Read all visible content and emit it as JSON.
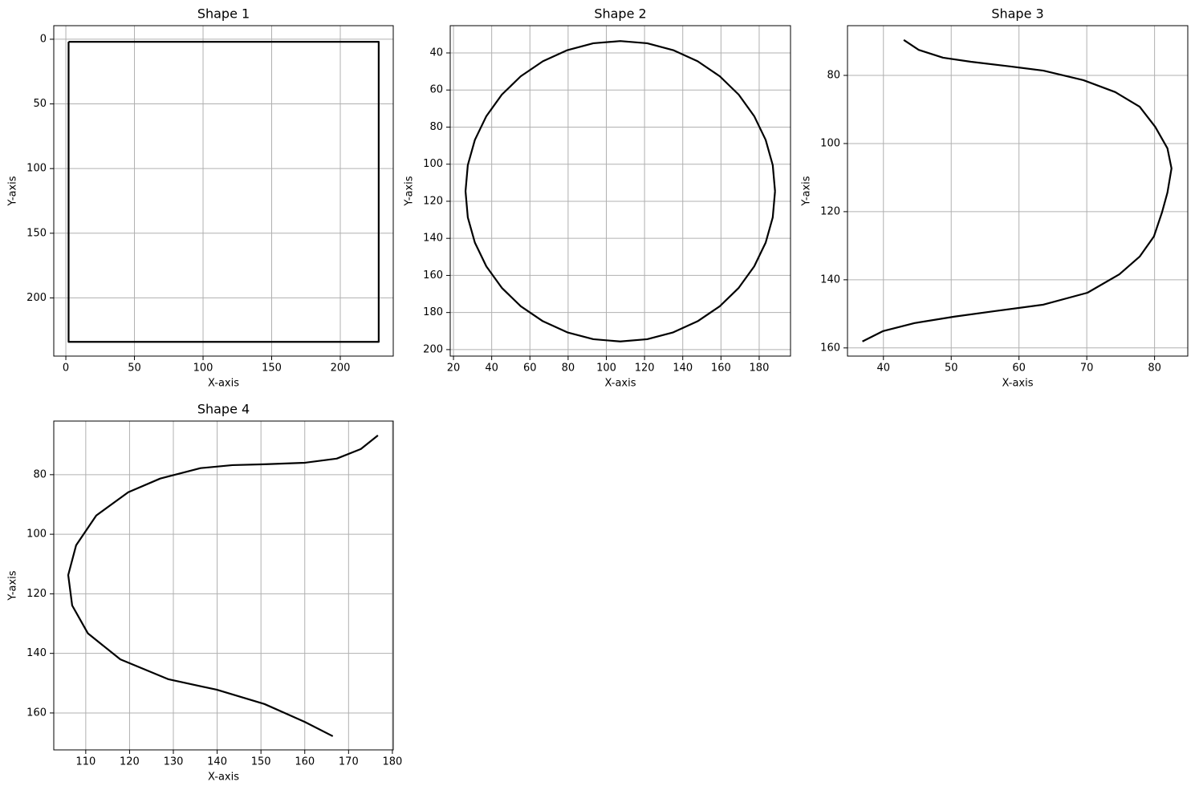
{
  "chart_data": [
    {
      "type": "line",
      "title": "Shape 1",
      "xlabel": "X-axis",
      "ylabel": "Y-axis",
      "color": "#000000",
      "grid": true,
      "x": [
        2,
        228,
        228,
        2,
        2
      ],
      "values": [
        2,
        2,
        234,
        234,
        2
      ],
      "xlim": [
        -8.8,
        238.6
      ],
      "ylim": [
        245,
        -10.5
      ],
      "xticks": [
        0,
        50,
        100,
        150,
        200
      ],
      "yticks": [
        0,
        50,
        100,
        150,
        200
      ]
    },
    {
      "type": "line",
      "title": "Shape 2",
      "xlabel": "X-axis",
      "ylabel": "Y-axis",
      "color": "#000000",
      "grid": true,
      "x": [
        188.3,
        187.1,
        183.4,
        177.4,
        169.3,
        159.4,
        147.8,
        135.0,
        121.4,
        107.3,
        93.2,
        79.6,
        66.8,
        55.2,
        45.3,
        37.2,
        31.2,
        27.5,
        26.3,
        27.5,
        31.2,
        37.2,
        45.3,
        55.2,
        66.8,
        79.6,
        93.2,
        107.3,
        121.4,
        135.0,
        147.8,
        159.4,
        169.3,
        177.4,
        183.4,
        187.1,
        188.3
      ],
      "values": [
        114.6,
        128.7,
        142.3,
        155.1,
        166.7,
        176.6,
        184.7,
        190.7,
        194.4,
        195.6,
        194.4,
        190.7,
        184.7,
        176.6,
        166.7,
        155.1,
        142.3,
        128.7,
        114.6,
        100.5,
        86.9,
        74.1,
        62.5,
        52.6,
        44.5,
        38.5,
        34.8,
        33.6,
        34.8,
        38.5,
        44.5,
        52.6,
        62.5,
        74.1,
        86.9,
        100.5,
        114.6
      ],
      "xlim": [
        18.3,
        196.4
      ],
      "ylim": [
        203.5,
        25.3
      ],
      "xticks": [
        20,
        40,
        60,
        80,
        100,
        120,
        140,
        160,
        180
      ],
      "yticks": [
        40,
        60,
        80,
        100,
        120,
        140,
        160,
        180,
        200
      ]
    },
    {
      "type": "line",
      "title": "Shape 3",
      "xlabel": "X-axis",
      "ylabel": "Y-axis",
      "color": "#000000",
      "grid": true,
      "x": [
        43.0,
        45.2,
        48.8,
        52.9,
        58.8,
        63.6,
        69.5,
        74.2,
        77.8,
        80.1,
        81.9,
        82.5,
        81.9,
        81.1,
        79.9,
        77.8,
        74.8,
        70.1,
        63.6,
        56.4,
        50.5,
        44.6,
        39.9,
        36.9
      ],
      "values": [
        69.6,
        72.5,
        74.8,
        76.0,
        77.4,
        78.6,
        81.4,
        84.9,
        89.2,
        95.1,
        101.4,
        107.3,
        114.4,
        120.2,
        127.3,
        133.2,
        138.4,
        143.8,
        147.3,
        149.2,
        150.8,
        152.7,
        155.1,
        158.1
      ],
      "xlim": [
        34.7,
        84.9
      ],
      "ylim": [
        162.4,
        65.4
      ],
      "xticks": [
        40,
        50,
        60,
        70,
        80
      ],
      "yticks": [
        80,
        100,
        120,
        140,
        160
      ]
    },
    {
      "type": "line",
      "title": "Shape 4",
      "xlabel": "X-axis",
      "ylabel": "Y-axis",
      "color": "#000000",
      "grid": true,
      "x": [
        176.7,
        172.8,
        167.3,
        160.0,
        150.8,
        143.5,
        136.2,
        127.0,
        119.7,
        112.4,
        107.8,
        106.0,
        106.9,
        110.5,
        117.9,
        128.9,
        139.9,
        150.8,
        160.0,
        166.4
      ],
      "values": [
        66.8,
        71.4,
        74.6,
        76.0,
        76.5,
        76.8,
        77.8,
        81.3,
        85.9,
        93.7,
        103.7,
        113.7,
        123.9,
        133.3,
        142.0,
        148.7,
        152.2,
        157.0,
        163.0,
        167.8
      ],
      "xlim": [
        102.7,
        180.2
      ],
      "ylim": [
        172.4,
        62.0
      ],
      "xticks": [
        110,
        120,
        130,
        140,
        150,
        160,
        170,
        180
      ],
      "yticks": [
        80,
        100,
        120,
        140,
        160
      ]
    }
  ]
}
